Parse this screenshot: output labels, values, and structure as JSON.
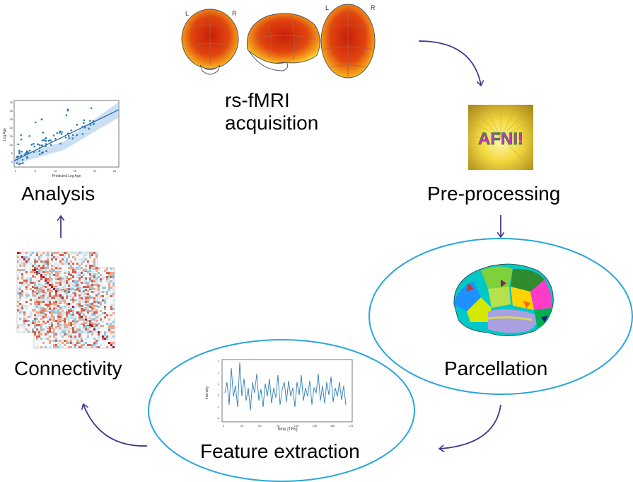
{
  "steps": {
    "acquisition": {
      "line1": "rs-fMRI",
      "line2": "acquisition"
    },
    "preprocessing": {
      "label": "Pre-processing",
      "logo_text": "AFNI!"
    },
    "parcellation": {
      "label": "Parcellation"
    },
    "feature_extraction": {
      "label": "Feature extraction"
    },
    "connectivity": {
      "label": "Connectivity"
    },
    "analysis": {
      "label": "Analysis"
    }
  },
  "brain_views": {
    "left_marker": "L",
    "right_marker": "R"
  },
  "timeseries_plot": {
    "xlabel": "Time [TRs]",
    "ylabel": "Intensity",
    "xticks": [
      "0",
      "25",
      "50",
      "75",
      "100",
      "125",
      "150",
      "175"
    ],
    "yticks": [
      "3",
      "2",
      "1",
      "0",
      "-1",
      "-2"
    ]
  },
  "scatter_plot": {
    "xlabel": "Predicted Log Age",
    "ylabel": "Log Age",
    "xticks": [
      "0",
      "5",
      "10",
      "15",
      "20",
      "25"
    ],
    "yticks": [
      "35",
      "30",
      "25",
      "20",
      "15",
      "10",
      "5",
      "0"
    ]
  },
  "colors": {
    "arrow": "#3c3a8c",
    "ellipse": "#29a6dc",
    "plot_line": "#2c7bb6"
  }
}
